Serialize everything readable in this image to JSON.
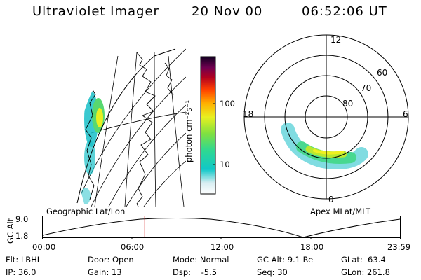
{
  "header": {
    "title": "Ultraviolet Imager",
    "date": "20 Nov 00",
    "time": "06:52:06 UT"
  },
  "colorbar": {
    "label": "photon cm⁻²s⁻¹",
    "ticks": [
      "100",
      "10"
    ]
  },
  "polar_plot": {
    "mlt_labels": {
      "top": "12",
      "left": "18",
      "right": "6",
      "bottom": "0"
    },
    "lat_labels": [
      "60",
      "70",
      "80"
    ]
  },
  "timeline": {
    "left_title": "Geographic Lat/Lon",
    "right_title": "Apex MLat/MLT",
    "ylabel": "GC Alt",
    "yticks": [
      "9.0",
      "1.8"
    ],
    "xticks": [
      "00:00",
      "06:00",
      "12:00",
      "18:00",
      "23:59"
    ],
    "marker_time_fraction": 0.286,
    "colors": {
      "marker": "#d01010"
    }
  },
  "footer": {
    "filter": "Flt: LBHL",
    "ip": "IP: 36.0",
    "door": "Door: Open",
    "gain": "Gain: 13",
    "mode": "Mode: Normal",
    "dsp": "Dsp:    -5.5",
    "gcalt": "GC Alt: 9.1 Re",
    "seq": "Seq: 30",
    "glat": "GLat:  63.4",
    "glon": "GLon: 261.8"
  }
}
